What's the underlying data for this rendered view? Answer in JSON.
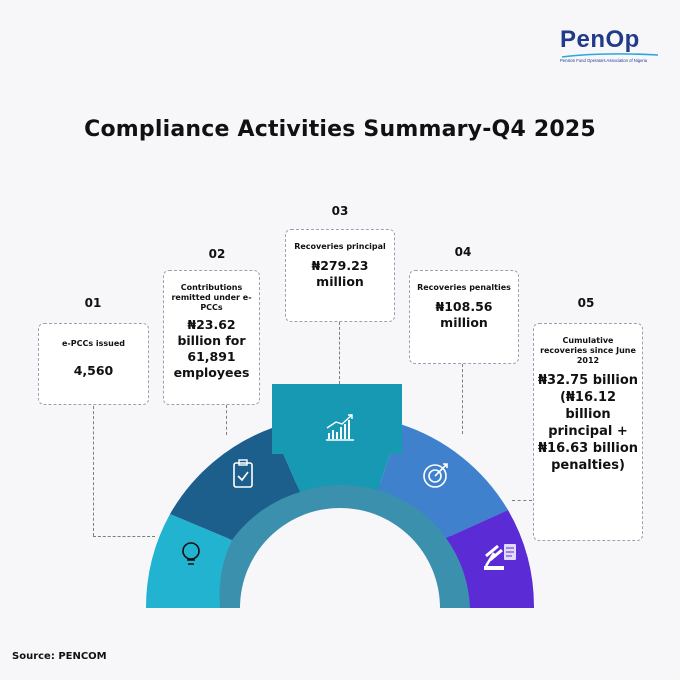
{
  "logo": {
    "name": "PenOp",
    "subtitle": "Pension Fund Operators Association of Nigeria"
  },
  "title": "Compliance Activities Summary-Q4 2025",
  "items": [
    {
      "number": "01",
      "label": "e-PCCs issued",
      "value": "4,560",
      "icon": "lightbulb-icon",
      "color": "#22b3d1"
    },
    {
      "number": "02",
      "label": "Contributions remitted under e-PCCs",
      "value": "₦23.62 billion for 61,891 employees",
      "icon": "clipboard-check-icon",
      "color": "#1d5f8c"
    },
    {
      "number": "03",
      "label": "Recoveries principal",
      "value": "₦279.23 million",
      "icon": "bar-chart-up-icon",
      "color": "#1798b3"
    },
    {
      "number": "04",
      "label": "Recoveries penalties",
      "value": "₦108.56 million",
      "icon": "target-icon",
      "color": "#3f81cc"
    },
    {
      "number": "05",
      "label": "Cumulative recoveries since June 2012",
      "value": "₦32.75 billion (₦16.12 billion principal + ₦16.63 billion penalties)",
      "icon": "gavel-icon",
      "color": "#5b2bd6"
    }
  ],
  "source": "Source: PENCOM"
}
